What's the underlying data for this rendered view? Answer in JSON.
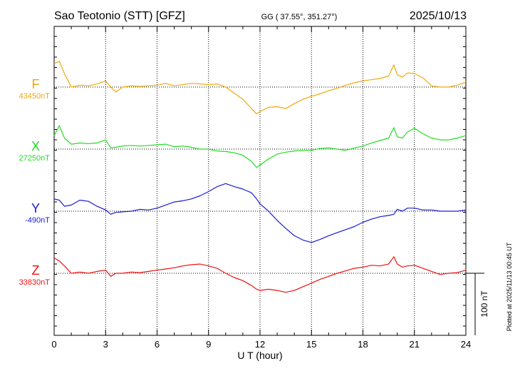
{
  "header": {
    "station": "Sao Teotonio (STT)  [GFZ]",
    "coords": "GG ( 37.55°, 351.27°)",
    "date": "2025/10/13"
  },
  "side_note": "Plotted at 2025/11/13 00:45 UT",
  "chart_data": {
    "type": "line",
    "xlabel": "U T (hour)",
    "xlim": [
      0,
      24
    ],
    "xticks": [
      "0",
      "3",
      "6",
      "9",
      "12",
      "15",
      "18",
      "21",
      "24"
    ],
    "scale_bar": {
      "label": "100 nT",
      "value": 100
    },
    "series": [
      {
        "name": "F",
        "baseline_label": "43450nT",
        "color": "#f0a80a",
        "x": [
          0,
          0.3,
          0.6,
          1.0,
          1.5,
          2.0,
          2.5,
          3.0,
          3.3,
          3.6,
          4.0,
          4.5,
          5.0,
          5.5,
          6.0,
          6.5,
          7.0,
          7.5,
          8.0,
          8.5,
          9.0,
          9.5,
          10.0,
          10.5,
          11.0,
          11.5,
          11.8,
          12.0,
          12.5,
          13.0,
          13.5,
          14.0,
          14.5,
          15.0,
          15.5,
          16.0,
          16.5,
          17.0,
          17.5,
          18.0,
          18.5,
          19.0,
          19.5,
          19.8,
          20.0,
          20.3,
          20.6,
          21.0,
          21.5,
          22.0,
          22.5,
          23.0,
          23.5,
          24.0
        ],
        "y": [
          38,
          42,
          22,
          0,
          3,
          2,
          5,
          10,
          0,
          -8,
          0,
          2,
          1,
          2,
          3,
          6,
          2,
          4,
          6,
          5,
          4,
          5,
          0,
          -10,
          -20,
          -35,
          -44,
          -40,
          -33,
          -32,
          -35,
          -27,
          -20,
          -15,
          -11,
          -6,
          -2,
          3,
          7,
          10,
          12,
          14,
          18,
          36,
          20,
          16,
          23,
          22,
          15,
          2,
          0,
          0,
          3,
          8
        ]
      },
      {
        "name": "X",
        "baseline_label": "27250nT",
        "color": "#22dd22",
        "x": [
          0,
          0.3,
          0.6,
          1.0,
          1.5,
          2.0,
          2.5,
          3.0,
          3.3,
          3.6,
          4.0,
          4.5,
          5.0,
          5.5,
          6.0,
          6.5,
          7.0,
          7.5,
          8.0,
          8.5,
          9.0,
          9.5,
          10.0,
          10.5,
          11.0,
          11.5,
          11.8,
          12.0,
          12.5,
          13.0,
          13.5,
          14.0,
          14.5,
          15.0,
          15.5,
          16.0,
          16.5,
          17.0,
          17.5,
          18.0,
          18.5,
          19.0,
          19.5,
          19.8,
          20.0,
          20.3,
          20.6,
          21.0,
          21.5,
          22.0,
          22.5,
          23.0,
          23.5,
          24.0
        ],
        "y": [
          22,
          38,
          18,
          8,
          10,
          9,
          10,
          15,
          2,
          3,
          5,
          6,
          5,
          6,
          7,
          8,
          4,
          5,
          3,
          0,
          0,
          -3,
          -4,
          -6,
          -10,
          -20,
          -30,
          -26,
          -16,
          -8,
          -5,
          -3,
          -2,
          -2,
          1,
          2,
          0,
          -2,
          2,
          5,
          10,
          14,
          18,
          35,
          20,
          18,
          28,
          34,
          25,
          18,
          15,
          15,
          18,
          22
        ]
      },
      {
        "name": "Y",
        "baseline_label": "-490nT",
        "color": "#1a1ad6",
        "x": [
          0,
          0.3,
          0.6,
          1.0,
          1.5,
          2.0,
          2.5,
          3.0,
          3.3,
          3.6,
          4.0,
          4.5,
          5.0,
          5.5,
          6.0,
          6.5,
          7.0,
          7.5,
          8.0,
          8.5,
          9.0,
          9.5,
          10.0,
          10.5,
          11.0,
          11.5,
          11.8,
          12.0,
          12.5,
          13.0,
          13.5,
          14.0,
          14.5,
          15.0,
          15.5,
          16.0,
          16.5,
          17.0,
          17.5,
          18.0,
          18.5,
          19.0,
          19.5,
          19.8,
          20.0,
          20.3,
          20.6,
          21.0,
          21.5,
          22.0,
          22.5,
          23.0,
          23.5,
          24.0
        ],
        "y": [
          20,
          18,
          8,
          10,
          18,
          16,
          8,
          2,
          -5,
          -2,
          -1,
          0,
          3,
          2,
          5,
          10,
          15,
          17,
          20,
          25,
          32,
          40,
          45,
          40,
          36,
          30,
          20,
          12,
          0,
          -15,
          -28,
          -40,
          -47,
          -51,
          -46,
          -40,
          -35,
          -30,
          -25,
          -18,
          -13,
          -9,
          -7,
          -5,
          3,
          0,
          5,
          5,
          2,
          2,
          0,
          0,
          0,
          2
        ]
      },
      {
        "name": "Z",
        "baseline_label": "33830nT",
        "color": "#ee1111",
        "x": [
          0,
          0.3,
          0.6,
          1.0,
          1.5,
          2.0,
          2.5,
          3.0,
          3.3,
          3.6,
          4.0,
          4.5,
          5.0,
          5.5,
          6.0,
          6.5,
          7.0,
          7.5,
          8.0,
          8.5,
          9.0,
          9.5,
          10.0,
          10.5,
          11.0,
          11.5,
          11.8,
          12.0,
          12.5,
          13.0,
          13.5,
          14.0,
          14.5,
          15.0,
          15.5,
          16.0,
          16.5,
          17.0,
          17.5,
          18.0,
          18.5,
          19.0,
          19.5,
          19.8,
          20.0,
          20.3,
          20.6,
          21.0,
          21.5,
          22.0,
          22.5,
          23.0,
          23.5,
          24.0
        ],
        "y": [
          25,
          20,
          12,
          0,
          2,
          0,
          3,
          5,
          -5,
          0,
          0,
          2,
          1,
          3,
          5,
          7,
          9,
          12,
          14,
          15,
          12,
          8,
          0,
          -7,
          -12,
          -20,
          -26,
          -28,
          -26,
          -28,
          -31,
          -28,
          -22,
          -16,
          -10,
          -5,
          0,
          4,
          8,
          10,
          13,
          12,
          15,
          27,
          15,
          10,
          12,
          13,
          8,
          3,
          -2,
          0,
          1,
          5
        ]
      }
    ]
  }
}
